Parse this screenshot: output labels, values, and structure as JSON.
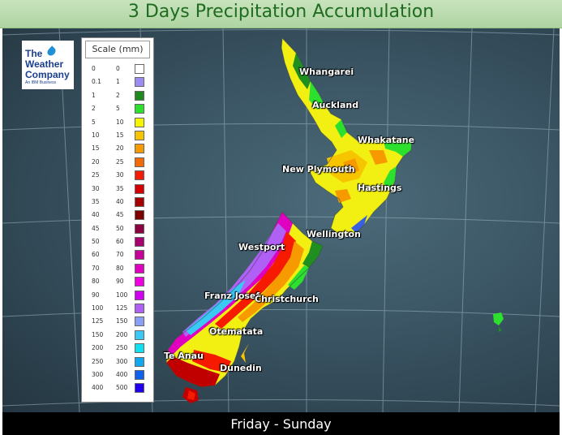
{
  "title": "3 Days Precipitation Accumulation",
  "subtitle": "Friday - Sunday",
  "logo": {
    "line1": "The",
    "line2": "Weather",
    "line3": "Company",
    "line4": "An IBM Business"
  },
  "scale": {
    "title": "Scale (mm)",
    "rows": [
      {
        "lo": "0",
        "hi": "0",
        "color": "#ffffff"
      },
      {
        "lo": "0.1",
        "hi": "1",
        "color": "#9a8cf0"
      },
      {
        "lo": "1",
        "hi": "2",
        "color": "#1e8a1e"
      },
      {
        "lo": "2",
        "hi": "5",
        "color": "#2ee02e"
      },
      {
        "lo": "5",
        "hi": "10",
        "color": "#f5f500"
      },
      {
        "lo": "10",
        "hi": "15",
        "color": "#f7c400"
      },
      {
        "lo": "15",
        "hi": "20",
        "color": "#f79a00"
      },
      {
        "lo": "20",
        "hi": "25",
        "color": "#f56a00"
      },
      {
        "lo": "25",
        "hi": "30",
        "color": "#f51a00"
      },
      {
        "lo": "30",
        "hi": "35",
        "color": "#d60000"
      },
      {
        "lo": "35",
        "hi": "40",
        "color": "#a80000"
      },
      {
        "lo": "40",
        "hi": "45",
        "color": "#7a0000"
      },
      {
        "lo": "45",
        "hi": "50",
        "color": "#8a0040"
      },
      {
        "lo": "50",
        "hi": "60",
        "color": "#a8006e"
      },
      {
        "lo": "60",
        "hi": "70",
        "color": "#c8009a"
      },
      {
        "lo": "70",
        "hi": "80",
        "color": "#e000c0"
      },
      {
        "lo": "80",
        "hi": "90",
        "color": "#f000e0"
      },
      {
        "lo": "90",
        "hi": "100",
        "color": "#d000f0"
      },
      {
        "lo": "100",
        "hi": "125",
        "color": "#b060f5"
      },
      {
        "lo": "125",
        "hi": "150",
        "color": "#8aa0f5"
      },
      {
        "lo": "150",
        "hi": "200",
        "color": "#3ac8f5"
      },
      {
        "lo": "200",
        "hi": "250",
        "color": "#10e0f0"
      },
      {
        "lo": "250",
        "hi": "300",
        "color": "#10a8f0"
      },
      {
        "lo": "300",
        "hi": "400",
        "color": "#1060f0"
      },
      {
        "lo": "400",
        "hi": "500",
        "color": "#2000f0"
      }
    ]
  },
  "cities": {
    "whangarei": "Whangarei",
    "auckland": "Auckland",
    "whakatane": "Whakatane",
    "new_plymouth": "New Plymouth",
    "hastings": "Hastings",
    "wellington": "Wellington",
    "westport": "Westport",
    "franz_josef": "Franz Josef",
    "christchurch": "Christchurch",
    "otematata": "Otematata",
    "te_anau": "Te Anau",
    "dunedin": "Dunedin"
  }
}
